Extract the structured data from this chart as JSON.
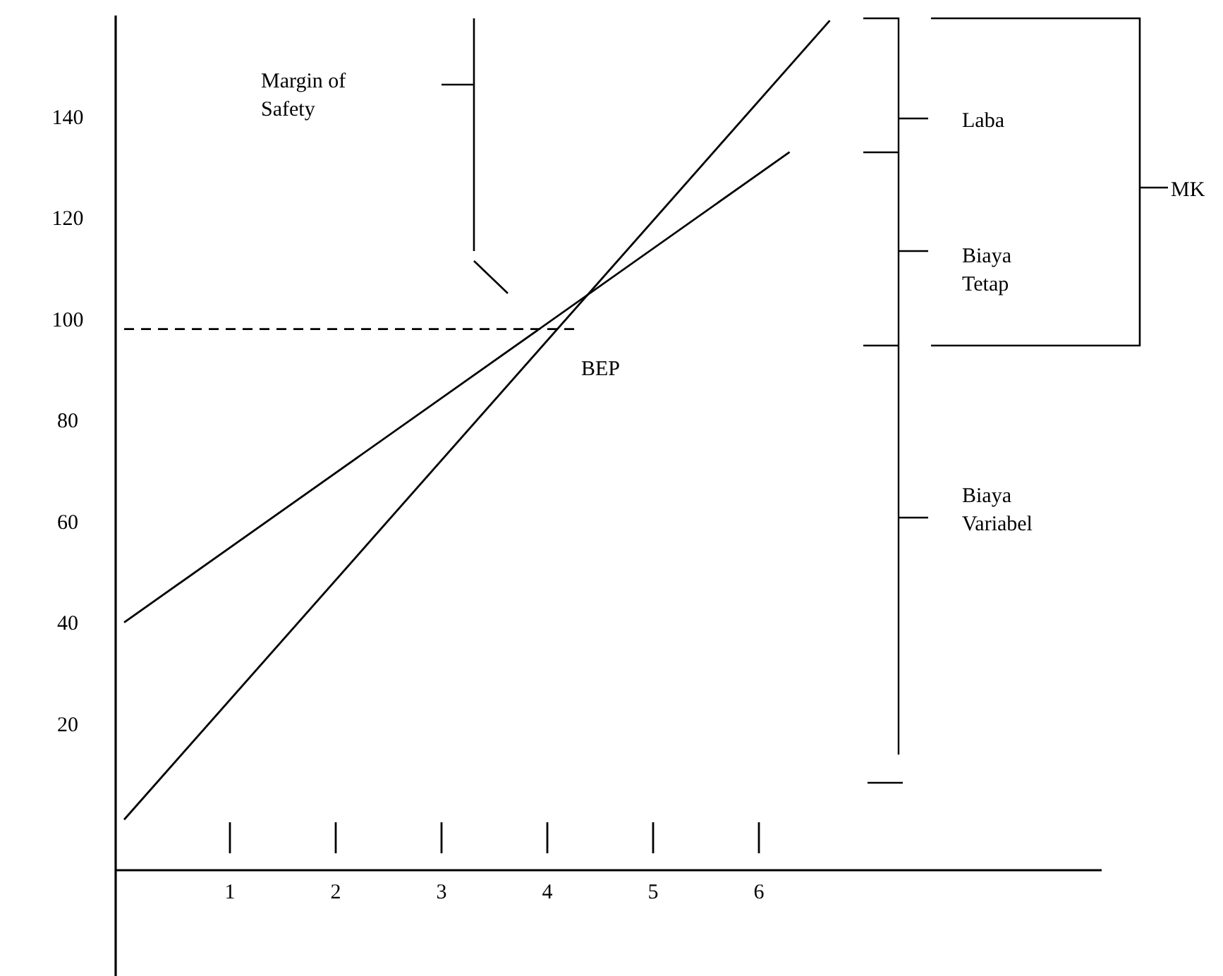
{
  "chart_data": {
    "type": "line",
    "xlim": [
      -0.08,
      9.24
    ],
    "ylim": [
      -9,
      160
    ],
    "xticks": [
      1,
      2,
      3,
      4,
      5,
      6
    ],
    "yticks": [
      20,
      40,
      60,
      80,
      100,
      120,
      140
    ],
    "series": [
      {
        "type": "line",
        "color": "#000000",
        "x": [
          0,
          6.29
        ],
        "values": [
          40,
          133
        ]
      },
      {
        "type": "line",
        "color": "#000000",
        "x": [
          0,
          6.67
        ],
        "values": [
          1,
          159
        ]
      },
      {
        "type": "line",
        "color": "#000000",
        "x": [
          0,
          4.3
        ],
        "values": [
          98,
          98
        ],
        "line_style": "dashed"
      }
    ],
    "grid": false,
    "marker": "none",
    "line_style": "solid",
    "annotations": [
      "Margin of Safety",
      "BEP",
      "Laba",
      "Biaya Tetap",
      "Biaya Variabel",
      "MK"
    ]
  }
}
